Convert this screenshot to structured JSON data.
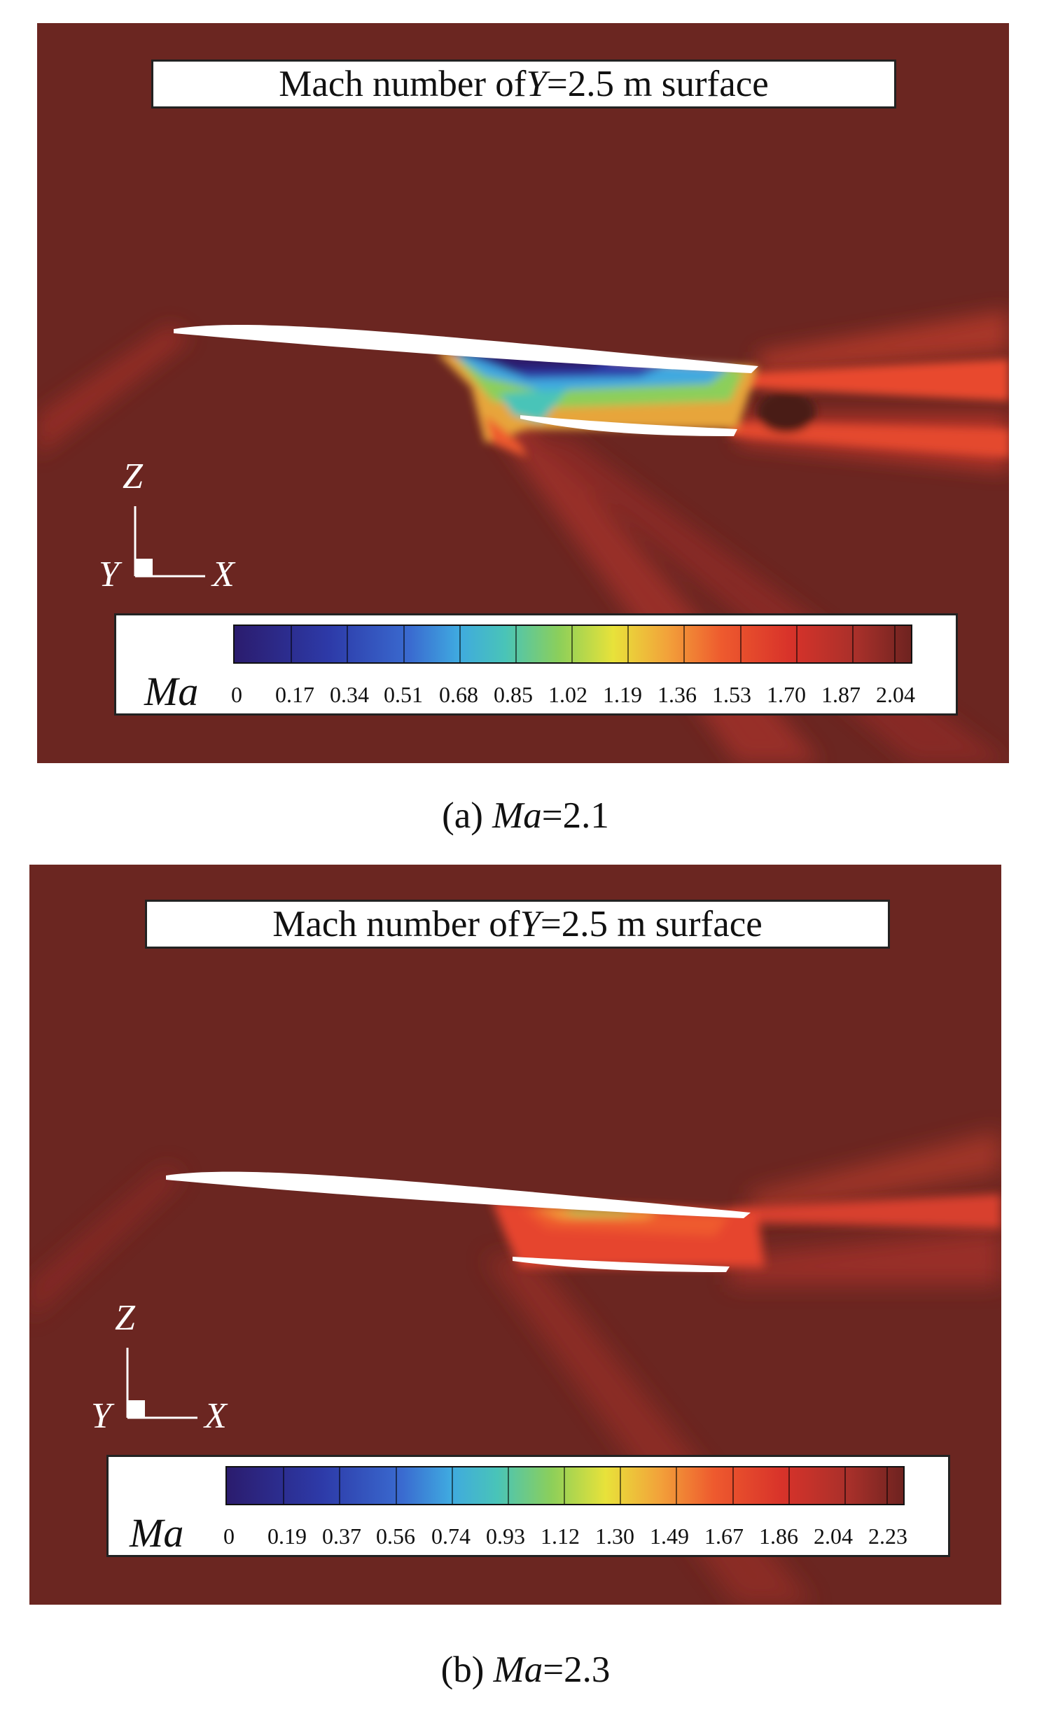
{
  "panels": [
    {
      "title_prefix": "Mach number of ",
      "title_var": "Y",
      "title_suffix": "=2.5 m surface",
      "colorbar_label": "Ma",
      "ticks": [
        "0",
        "0.17",
        "0.34",
        "0.51",
        "0.68",
        "0.85",
        "1.02",
        "1.19",
        "1.36",
        "1.53",
        "1.70",
        "1.87",
        "2.04"
      ],
      "axes": {
        "z": "Z",
        "y": "Y",
        "x": "X"
      },
      "caption_prefix": "(a) ",
      "caption_var": "Ma",
      "caption_suffix": "=2.1"
    },
    {
      "title_prefix": "Mach number of ",
      "title_var": "Y",
      "title_suffix": "=2.5 m surface",
      "colorbar_label": "Ma",
      "ticks": [
        "0",
        "0.19",
        "0.37",
        "0.56",
        "0.74",
        "0.93",
        "1.12",
        "1.30",
        "1.49",
        "1.67",
        "1.86",
        "2.04",
        "2.23"
      ],
      "axes": {
        "z": "Z",
        "y": "Y",
        "x": "X"
      },
      "caption_prefix": "(b) ",
      "caption_var": "Ma",
      "caption_suffix": "=2.3"
    }
  ],
  "colors": {
    "freestream": "#6b2621",
    "colormap": [
      "#2b1c6e",
      "#2d3aa8",
      "#3a6bd0",
      "#3fa9e0",
      "#49c4b8",
      "#8ccf5a",
      "#e8e23a",
      "#f2a23a",
      "#ee5a2e",
      "#d8332a",
      "#a8302a",
      "#6e2320"
    ]
  }
}
